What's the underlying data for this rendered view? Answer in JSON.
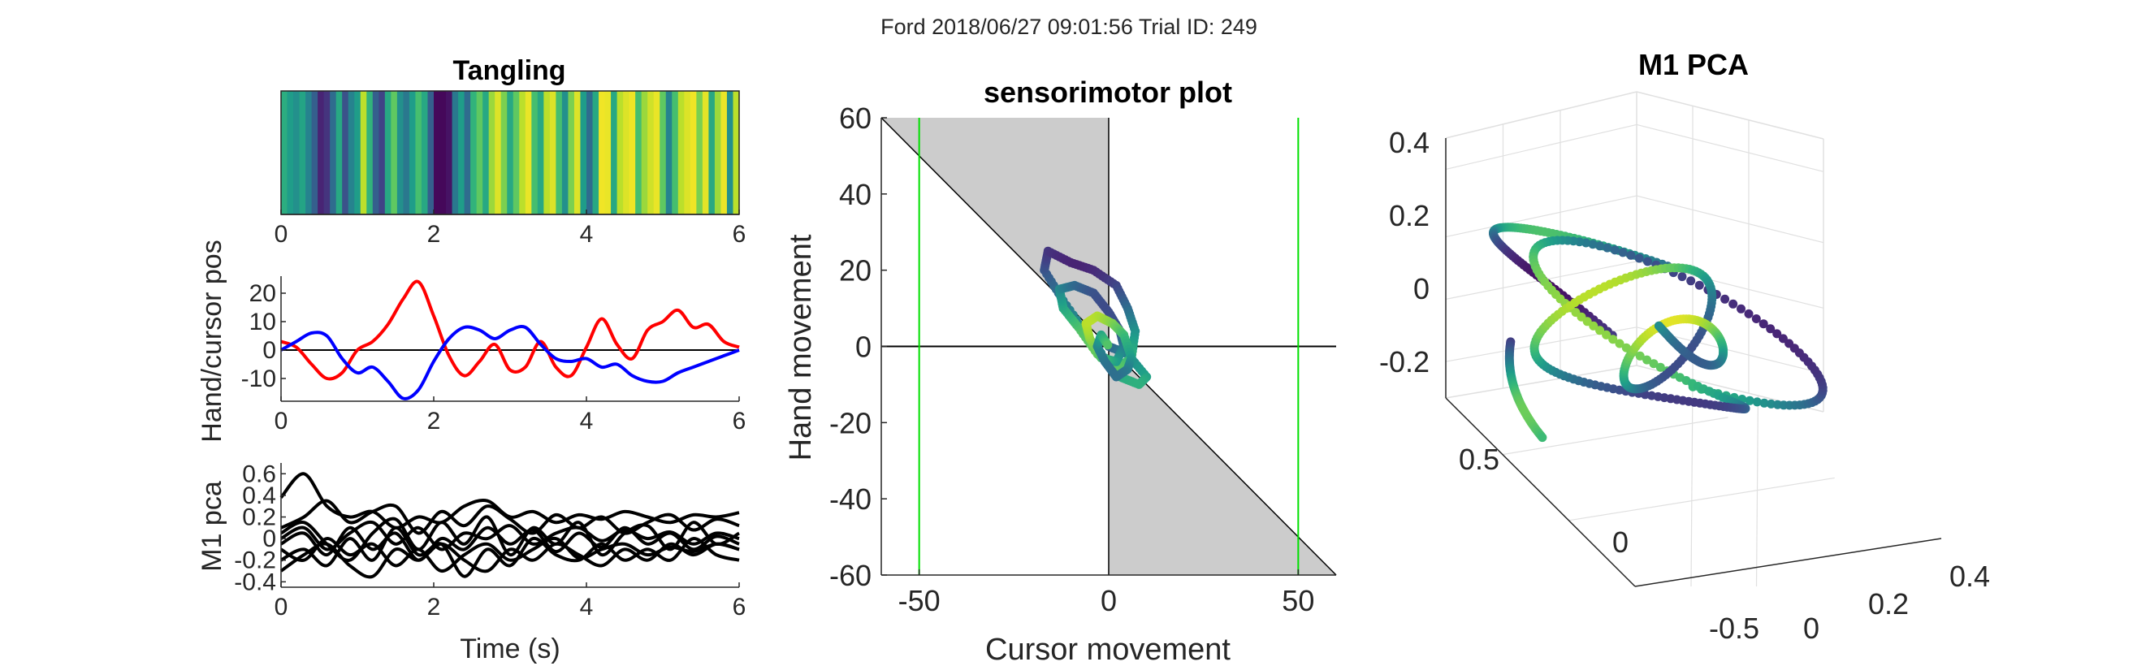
{
  "figure": {
    "suptitle": "Ford 2018/06/27 09:01:56 Trial ID: 249"
  },
  "chart_data": [
    {
      "id": "tangling",
      "type": "heatmap",
      "title": "Tangling",
      "xlim": [
        0,
        6
      ],
      "xticks": [
        "0",
        "2",
        "4",
        "6"
      ],
      "colormap": "viridis",
      "stripes": [
        0.62,
        0.55,
        0.5,
        0.58,
        0.45,
        0.3,
        0.1,
        0.15,
        0.35,
        0.6,
        0.25,
        0.45,
        0.55,
        0.9,
        0.65,
        0.3,
        0.2,
        0.6,
        0.75,
        0.5,
        0.4,
        0.55,
        0.7,
        0.6,
        0.3,
        0.02,
        0.02,
        0.05,
        0.4,
        0.55,
        0.35,
        0.65,
        0.75,
        0.6,
        0.85,
        0.95,
        0.8,
        0.6,
        0.75,
        0.9,
        0.97,
        0.7,
        0.6,
        0.9,
        0.95,
        0.7,
        0.5,
        0.8,
        0.95,
        0.55,
        0.35,
        0.6,
        0.98,
        0.97,
        0.6,
        0.9,
        0.95,
        0.98,
        0.7,
        0.85,
        0.93,
        0.97,
        0.75,
        0.45,
        0.7,
        0.9,
        0.95,
        0.98,
        0.8,
        0.96,
        0.6,
        0.85,
        0.97,
        0.5,
        0.9
      ]
    },
    {
      "id": "hand-cursor",
      "type": "line",
      "ylabel": "Hand/cursor pos",
      "xlim": [
        0,
        6
      ],
      "ylim": [
        -18,
        26
      ],
      "xticks": [
        "0",
        "2",
        "4",
        "6"
      ],
      "yticks": [
        "-10",
        "0",
        "10",
        "20"
      ],
      "series": [
        {
          "color": "#ff0000",
          "x": [
            0,
            0.2,
            0.4,
            0.6,
            0.8,
            1.0,
            1.2,
            1.4,
            1.6,
            1.8,
            2.0,
            2.2,
            2.4,
            2.6,
            2.8,
            3.0,
            3.2,
            3.4,
            3.6,
            3.8,
            4.0,
            4.2,
            4.4,
            4.6,
            4.8,
            5.0,
            5.2,
            5.4,
            5.6,
            5.8,
            6.0
          ],
          "y": [
            3,
            1,
            -5,
            -10,
            -8,
            0,
            3,
            9,
            18,
            24,
            12,
            -2,
            -9,
            -4,
            2,
            -7,
            -6,
            3,
            -6,
            -9,
            1,
            11,
            2,
            -3,
            7,
            10,
            14,
            8,
            9,
            3,
            1
          ]
        },
        {
          "color": "#0000ff",
          "x": [
            0,
            0.2,
            0.4,
            0.6,
            0.8,
            1.0,
            1.2,
            1.4,
            1.6,
            1.8,
            2.0,
            2.2,
            2.4,
            2.6,
            2.8,
            3.0,
            3.2,
            3.4,
            3.6,
            3.8,
            4.0,
            4.2,
            4.4,
            4.6,
            4.8,
            5.0,
            5.2,
            5.4,
            5.6,
            5.8,
            6.0
          ],
          "y": [
            0,
            3,
            6,
            5,
            -3,
            -8,
            -6,
            -11,
            -17,
            -14,
            -4,
            4,
            8,
            7,
            4,
            7,
            8,
            2,
            -3,
            -4,
            -3,
            -6,
            -5,
            -9,
            -11,
            -11,
            -8,
            -6,
            -4,
            -2,
            0
          ]
        }
      ]
    },
    {
      "id": "m1-pca-traces",
      "type": "line",
      "xlabel": "Time (s)",
      "ylabel": "M1 pca",
      "xlim": [
        0,
        6
      ],
      "ylim": [
        -0.45,
        0.7
      ],
      "xticks": [
        "0",
        "2",
        "4",
        "6"
      ],
      "yticks": [
        "-0.4",
        "-0.2",
        "0",
        "0.2",
        "0.4",
        "0.6"
      ],
      "series": [
        {
          "color": "#000000",
          "x": [
            0,
            0.3,
            0.6,
            0.9,
            1.2,
            1.5,
            1.8,
            2.1,
            2.4,
            2.7,
            3.0,
            3.3,
            3.6,
            3.9,
            4.2,
            4.5,
            4.8,
            5.1,
            5.4,
            5.7,
            6.0
          ],
          "y": [
            0.38,
            0.6,
            0.3,
            0.2,
            0.25,
            0.1,
            0.2,
            0.15,
            0.3,
            0.35,
            0.2,
            0.25,
            0.15,
            0.22,
            0.18,
            0.25,
            0.2,
            0.15,
            0.22,
            0.2,
            0.24
          ]
        },
        {
          "color": "#000000",
          "x": [
            0,
            0.3,
            0.6,
            0.9,
            1.2,
            1.5,
            1.8,
            2.1,
            2.4,
            2.7,
            3.0,
            3.3,
            3.6,
            3.9,
            4.2,
            4.5,
            4.8,
            5.1,
            5.4,
            5.7,
            6.0
          ],
          "y": [
            0.1,
            0.2,
            0.35,
            0.15,
            0.25,
            0.3,
            0.05,
            0.25,
            0.12,
            0.3,
            0.18,
            0.05,
            0.22,
            0.1,
            0.2,
            0.05,
            0.15,
            0.22,
            0.08,
            0.18,
            0.12
          ]
        },
        {
          "color": "#000000",
          "x": [
            0,
            0.3,
            0.6,
            0.9,
            1.2,
            1.5,
            1.8,
            2.1,
            2.4,
            2.7,
            3.0,
            3.3,
            3.6,
            3.9,
            4.2,
            4.5,
            4.8,
            5.1,
            5.4,
            5.7,
            6.0
          ],
          "y": [
            0.0,
            0.1,
            -0.1,
            0.05,
            0.15,
            -0.05,
            0.1,
            -0.1,
            0.05,
            0.0,
            0.12,
            -0.05,
            0.05,
            0.1,
            -0.02,
            0.08,
            0.0,
            0.06,
            -0.05,
            0.05,
            0.0
          ]
        },
        {
          "color": "#000000",
          "x": [
            0,
            0.3,
            0.6,
            0.9,
            1.2,
            1.5,
            1.8,
            2.1,
            2.4,
            2.7,
            3.0,
            3.3,
            3.6,
            3.9,
            4.2,
            4.5,
            4.8,
            5.1,
            5.4,
            5.7,
            6.0
          ],
          "y": [
            -0.05,
            0.05,
            -0.15,
            0.1,
            -0.1,
            0.05,
            -0.2,
            0.0,
            -0.1,
            0.1,
            -0.05,
            0.08,
            -0.12,
            0.05,
            -0.08,
            0.1,
            -0.05,
            0.05,
            -0.1,
            0.02,
            -0.05
          ]
        },
        {
          "color": "#000000",
          "x": [
            0,
            0.3,
            0.6,
            0.9,
            1.2,
            1.5,
            1.8,
            2.1,
            2.4,
            2.7,
            3.0,
            3.3,
            3.6,
            3.9,
            4.2,
            4.5,
            4.8,
            5.1,
            5.4,
            5.7,
            6.0
          ],
          "y": [
            -0.1,
            -0.2,
            0.0,
            -0.15,
            -0.05,
            -0.25,
            -0.1,
            -0.3,
            -0.15,
            -0.05,
            -0.2,
            -0.1,
            0.0,
            -0.18,
            -0.1,
            -0.05,
            -0.15,
            -0.08,
            -0.12,
            -0.05,
            -0.1
          ]
        },
        {
          "color": "#000000",
          "x": [
            0,
            0.3,
            0.6,
            0.9,
            1.2,
            1.5,
            1.8,
            2.1,
            2.4,
            2.7,
            3.0,
            3.3,
            3.6,
            3.9,
            4.2,
            4.5,
            4.8,
            5.1,
            5.4,
            5.7,
            6.0
          ],
          "y": [
            -0.2,
            -0.1,
            -0.25,
            0.0,
            -0.2,
            0.1,
            -0.15,
            -0.05,
            -0.35,
            -0.1,
            -0.25,
            0.0,
            -0.15,
            -0.2,
            -0.05,
            -0.2,
            -0.1,
            -0.2,
            0.0,
            -0.15,
            -0.2
          ]
        },
        {
          "color": "#000000",
          "x": [
            0,
            0.3,
            0.6,
            0.9,
            1.2,
            1.5,
            1.8,
            2.1,
            2.4,
            2.7,
            3.0,
            3.3,
            3.6,
            3.9,
            4.2,
            4.5,
            4.8,
            5.1,
            5.4,
            5.7,
            6.0
          ],
          "y": [
            0.05,
            0.15,
            -0.05,
            -0.2,
            0.05,
            0.18,
            -0.1,
            0.15,
            -0.05,
            0.2,
            -0.15,
            0.1,
            -0.05,
            0.15,
            -0.15,
            0.05,
            0.12,
            -0.1,
            0.15,
            -0.05,
            0.05
          ]
        },
        {
          "color": "#000000",
          "x": [
            0,
            0.3,
            0.6,
            0.9,
            1.2,
            1.5,
            1.8,
            2.1,
            2.4,
            2.7,
            3.0,
            3.3,
            3.6,
            3.9,
            4.2,
            4.5,
            4.8,
            5.1,
            5.4,
            5.7,
            6.0
          ],
          "y": [
            -0.3,
            -0.15,
            -0.05,
            -0.25,
            -0.35,
            -0.1,
            -0.2,
            -0.05,
            -0.2,
            -0.3,
            -0.1,
            -0.2,
            -0.05,
            -0.15,
            -0.25,
            -0.1,
            -0.2,
            -0.05,
            -0.15,
            -0.05,
            -0.1
          ]
        }
      ]
    },
    {
      "id": "sensorimotor",
      "type": "line",
      "title": "sensorimotor plot",
      "xlabel": "Cursor movement",
      "ylabel": "Hand movement",
      "xlim": [
        -60,
        60
      ],
      "ylim": [
        -60,
        60
      ],
      "xticks": [
        "-50",
        "0",
        "50"
      ],
      "yticks": [
        "-60",
        "-40",
        "-20",
        "0",
        "20",
        "40",
        "60"
      ],
      "vlines": [
        -50,
        50
      ],
      "vline_color": "#00e000",
      "shade_color": "#cccccc",
      "trajectory": {
        "x": [
          0,
          5,
          10,
          8,
          3,
          -5,
          -12,
          -17,
          -16,
          -10,
          -4,
          2,
          5,
          7,
          6,
          2,
          -3,
          -8,
          -12,
          -13,
          -9,
          -4,
          0,
          3,
          4,
          2,
          -2,
          -5,
          -6,
          -3,
          1,
          4,
          6,
          5,
          2,
          -1,
          -3,
          -2,
          0
        ],
        "y": [
          0,
          -2,
          -8,
          -10,
          -8,
          2,
          12,
          20,
          25,
          22,
          20,
          16,
          10,
          4,
          -3,
          -6,
          -2,
          5,
          10,
          15,
          16,
          14,
          9,
          4,
          0,
          -4,
          -3,
          2,
          6,
          8,
          6,
          3,
          -3,
          -6,
          -8,
          -4,
          0,
          3,
          0
        ]
      }
    },
    {
      "id": "m1-pca-3d",
      "type": "scatter",
      "title": "M1 PCA",
      "ztick_labels": [
        "0.4",
        "0.2",
        "0",
        "-0.2"
      ],
      "xtick_labels": [
        "0.5",
        "0",
        "-0.5"
      ],
      "ytick_labels": [
        "0",
        "0.2",
        "0.4"
      ],
      "colormap": "viridis"
    }
  ]
}
